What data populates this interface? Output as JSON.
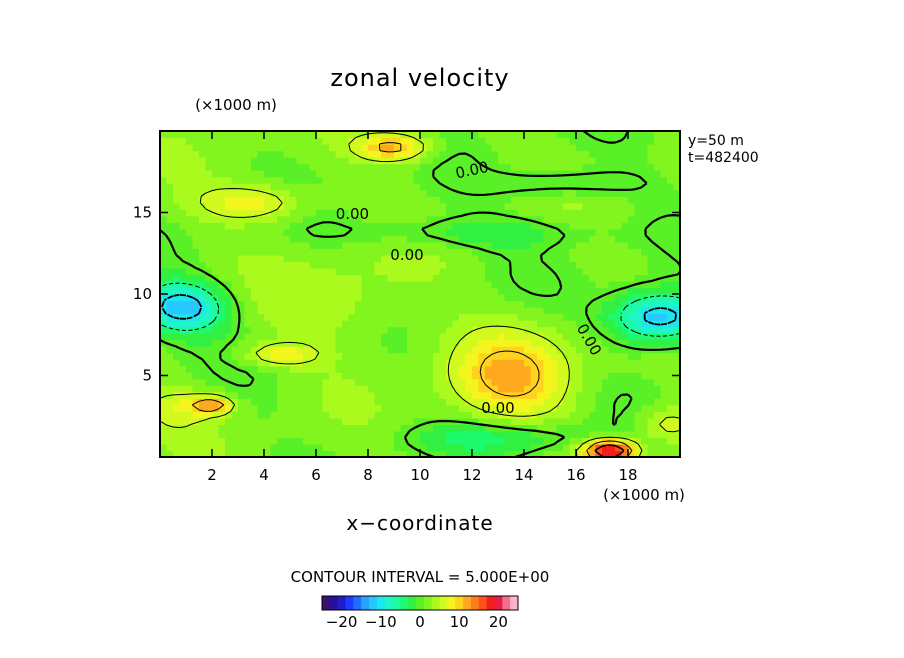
{
  "chart_data": {
    "type": "heatmap",
    "title": "zonal velocity",
    "xlabel": "x−coordinate",
    "x_unit": "(×1000 m)",
    "y_unit": "(×1000 m)",
    "info": [
      "y=50  m",
      "t=482400"
    ],
    "xlim": [
      0,
      20
    ],
    "ylim": [
      0,
      20
    ],
    "x_ticks": [
      2,
      4,
      6,
      8,
      10,
      12,
      14,
      16,
      18
    ],
    "y_ticks": [
      5,
      10,
      15
    ],
    "grid": false,
    "contour_interval_text": "CONTOUR INTERVAL = 5.000E+00",
    "contour_labels": [
      {
        "text": "0.00",
        "x": 12.0,
        "y": 17.6,
        "angle": -12
      },
      {
        "text": "0.00",
        "x": 7.4,
        "y": 14.9,
        "angle": 0
      },
      {
        "text": "0.00",
        "x": 9.5,
        "y": 12.4,
        "angle": 0
      },
      {
        "text": "0.00",
        "x": 13.0,
        "y": 3.0,
        "angle": 0
      },
      {
        "text": "0.00",
        "x": 16.5,
        "y": 7.2,
        "angle": 60
      }
    ],
    "field_features": [
      {
        "x": 0.8,
        "y": 9.2,
        "value": -14,
        "sx": 1.2,
        "sy": 1.1
      },
      {
        "x": 19.2,
        "y": 8.6,
        "value": -15,
        "sx": 1.3,
        "sy": 1.1
      },
      {
        "x": 13.5,
        "y": 5.0,
        "value": 9,
        "sx": 1.7,
        "sy": 2.0
      },
      {
        "x": 9.0,
        "y": 19.0,
        "value": 10,
        "sx": 1.0,
        "sy": 0.6
      },
      {
        "x": 17.3,
        "y": 0.4,
        "value": 19,
        "sx": 0.7,
        "sy": 0.5
      },
      {
        "x": 2.0,
        "y": 3.2,
        "value": 11,
        "sx": 0.6,
        "sy": 0.4
      },
      {
        "x": 4.6,
        "y": 6.3,
        "value": 7,
        "sx": 1.0,
        "sy": 0.5
      },
      {
        "x": 3.6,
        "y": 15.6,
        "value": 7,
        "sx": 1.5,
        "sy": 0.8
      },
      {
        "x": 12.0,
        "y": 13.8,
        "value": -4,
        "sx": 3.5,
        "sy": 0.7
      },
      {
        "x": 15.5,
        "y": 16.8,
        "value": -4,
        "sx": 2.0,
        "sy": 0.6
      },
      {
        "x": 13.0,
        "y": 1.2,
        "value": -5,
        "sx": 2.5,
        "sy": 0.7
      },
      {
        "x": 19.5,
        "y": 2.0,
        "value": 5,
        "sx": 0.8,
        "sy": 0.8
      },
      {
        "x": 0.5,
        "y": 3.0,
        "value": 4,
        "sx": 1.0,
        "sy": 1.0
      },
      {
        "x": 7.0,
        "y": 9.5,
        "value": 3,
        "sx": 2.0,
        "sy": 2.0
      }
    ],
    "colorbar": {
      "ticks": [
        -20,
        -10,
        0,
        10,
        20
      ],
      "range": [
        -25,
        25
      ],
      "colors": [
        "#3b0f6e",
        "#2a0f9c",
        "#1e1ec8",
        "#1e3cff",
        "#1e6eff",
        "#2aa0ff",
        "#25c8ff",
        "#1ee6f0",
        "#1ef5c8",
        "#1efaa0",
        "#1efa6e",
        "#32f041",
        "#5af028",
        "#82f51e",
        "#aafa1e",
        "#d2fa1e",
        "#f5f51e",
        "#ffd21e",
        "#ffaa1e",
        "#ff7d1e",
        "#ff501e",
        "#f51e1e",
        "#e61e46",
        "#f56e8c",
        "#ffb4c8"
      ]
    }
  }
}
